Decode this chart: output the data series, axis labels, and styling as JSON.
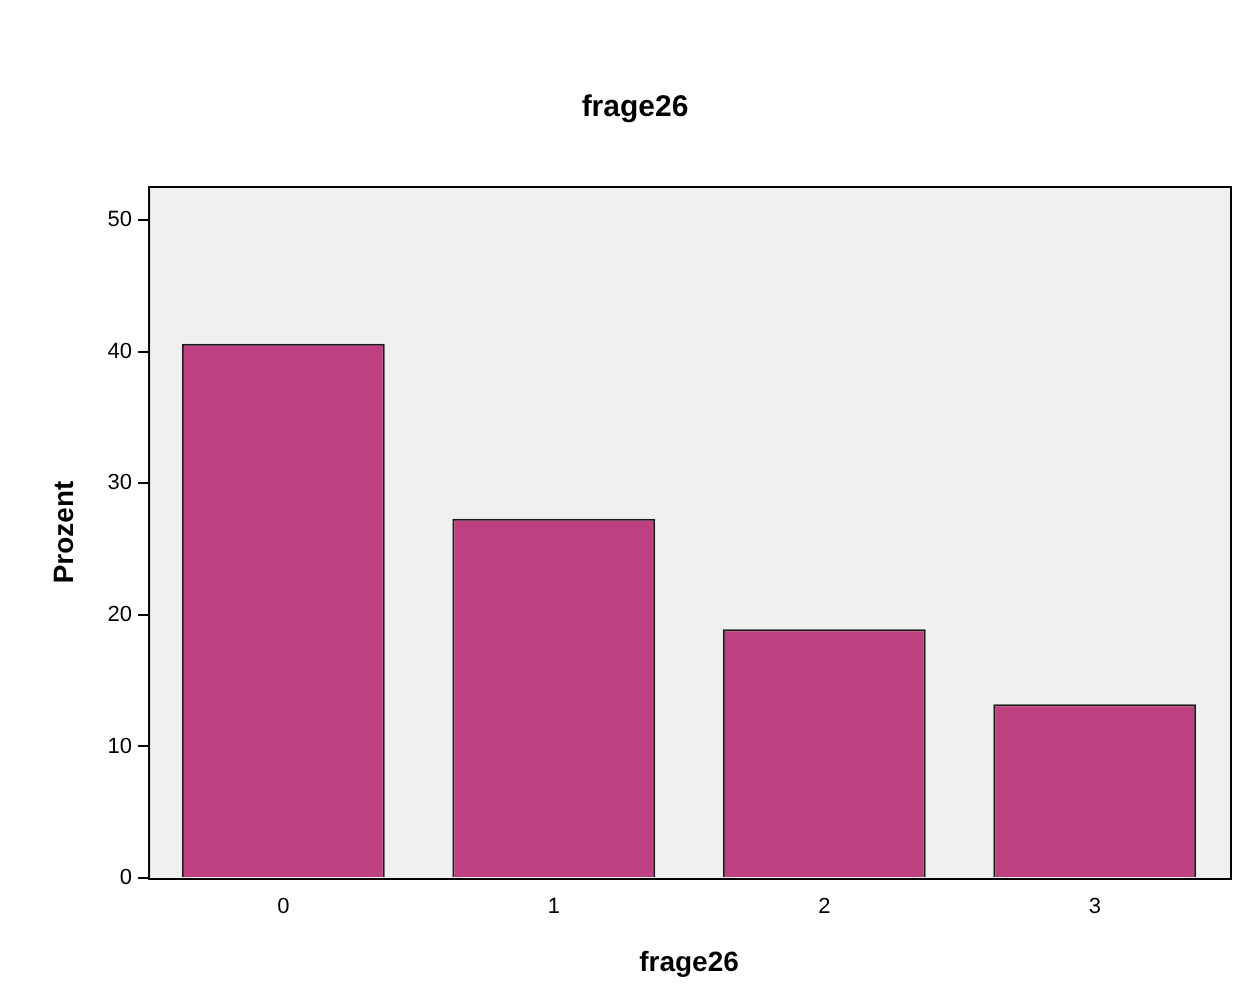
{
  "chart_data": {
    "type": "bar",
    "title": "frage26",
    "xlabel": "frage26",
    "ylabel": "Prozent",
    "categories": [
      "0",
      "1",
      "2",
      "3"
    ],
    "values": [
      40.6,
      27.3,
      18.9,
      13.2
    ],
    "color": "#be4080",
    "ylim": [
      0,
      52.6
    ],
    "yticks": [
      0,
      10,
      20,
      30,
      40,
      50
    ],
    "grid": false,
    "legend": false
  }
}
